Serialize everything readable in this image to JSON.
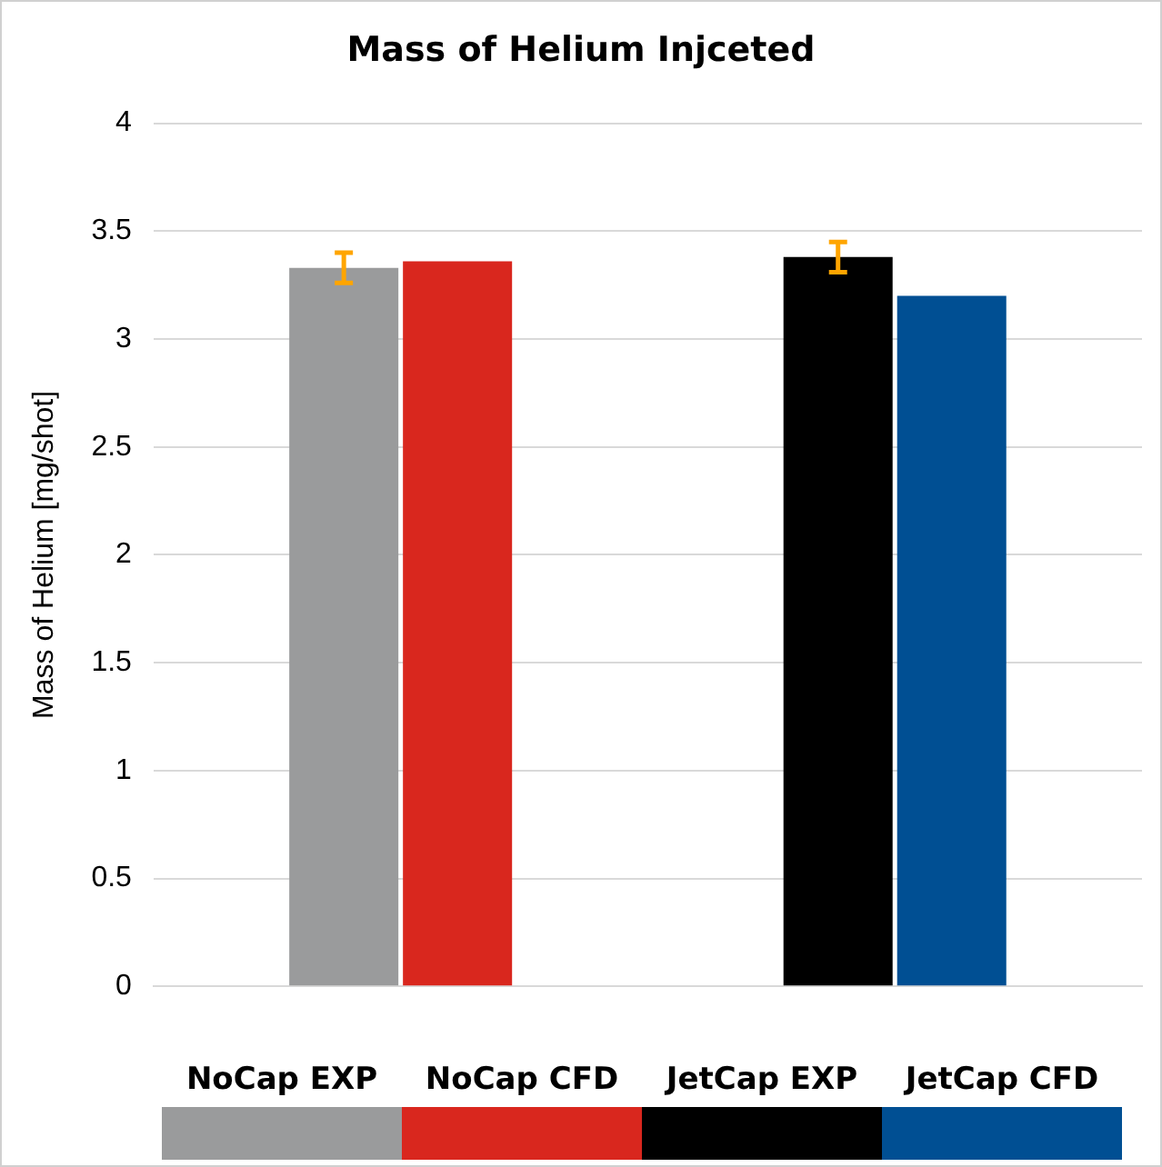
{
  "chart_data": {
    "type": "bar",
    "title": "Mass of Helium Injceted",
    "ylabel": "Mass of Helium [mg/shot]",
    "categories": [
      null,
      null
    ],
    "series": [
      {
        "name": "NoCap EXP",
        "color": "#9a9b9c",
        "values": [
          3.33,
          null
        ],
        "errors": [
          0.07,
          null
        ]
      },
      {
        "name": "NoCap CFD",
        "color": "#d9271e",
        "values": [
          3.36,
          null
        ]
      },
      {
        "name": "JetCap EXP",
        "color": "#000000",
        "values": [
          null,
          3.38
        ],
        "errors": [
          null,
          0.07
        ]
      },
      {
        "name": "JetCap CFD",
        "color": "#004f93",
        "values": [
          null,
          3.2
        ]
      }
    ],
    "ylim": [
      0,
      4
    ],
    "yticks": [
      0,
      0.5,
      1,
      1.5,
      2,
      2.5,
      3,
      3.5,
      4
    ],
    "grid": "y",
    "legend": "bottom"
  }
}
